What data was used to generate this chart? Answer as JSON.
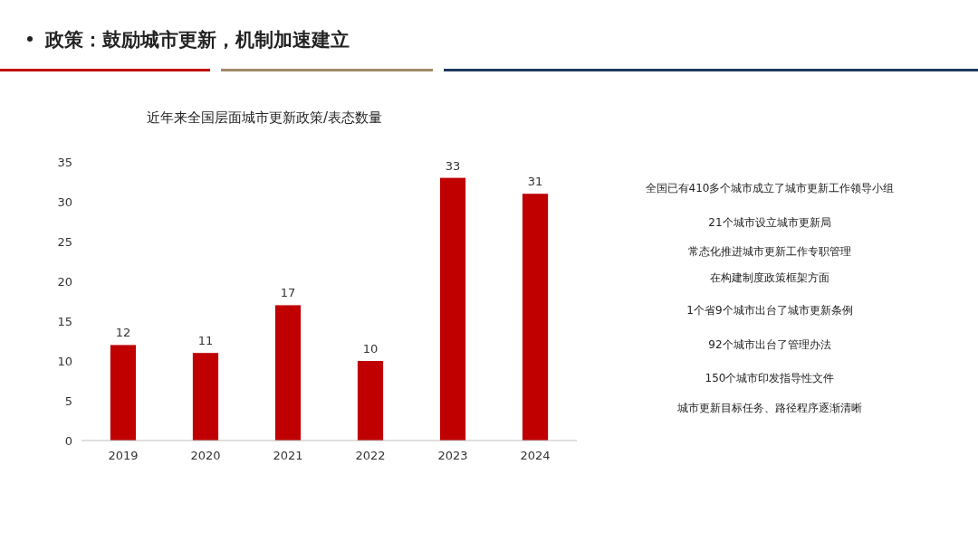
{
  "chart_data": {
    "type": "bar",
    "title": "政策：鼓励城市更新，机制加速建立",
    "subtitle": "近年来全国层面城市更新政策/表态数量",
    "categories": [
      "2019",
      "2020",
      "2021",
      "2022",
      "2023",
      "2024"
    ],
    "values": [
      12,
      11,
      17,
      10,
      33,
      31
    ],
    "color": "#c00000",
    "ylim": [
      0,
      35
    ],
    "yticks": [
      0,
      5,
      10,
      15,
      20,
      25,
      30,
      35
    ],
    "grid": false,
    "data_labels": true,
    "annotations": [
      "全国已有410多个城市成立了城市更新工作领导小组",
      "21个城市设立城市更新局",
      "常态化推进城市更新工作专职管理",
      "在构建制度政策框架方面",
      "1个省9个城市出台了城市更新条例",
      "92个城市出台了管理办法",
      "150个城市印发指导性文件",
      "城市更新目标任务、路径程序逐渐清晰"
    ]
  }
}
